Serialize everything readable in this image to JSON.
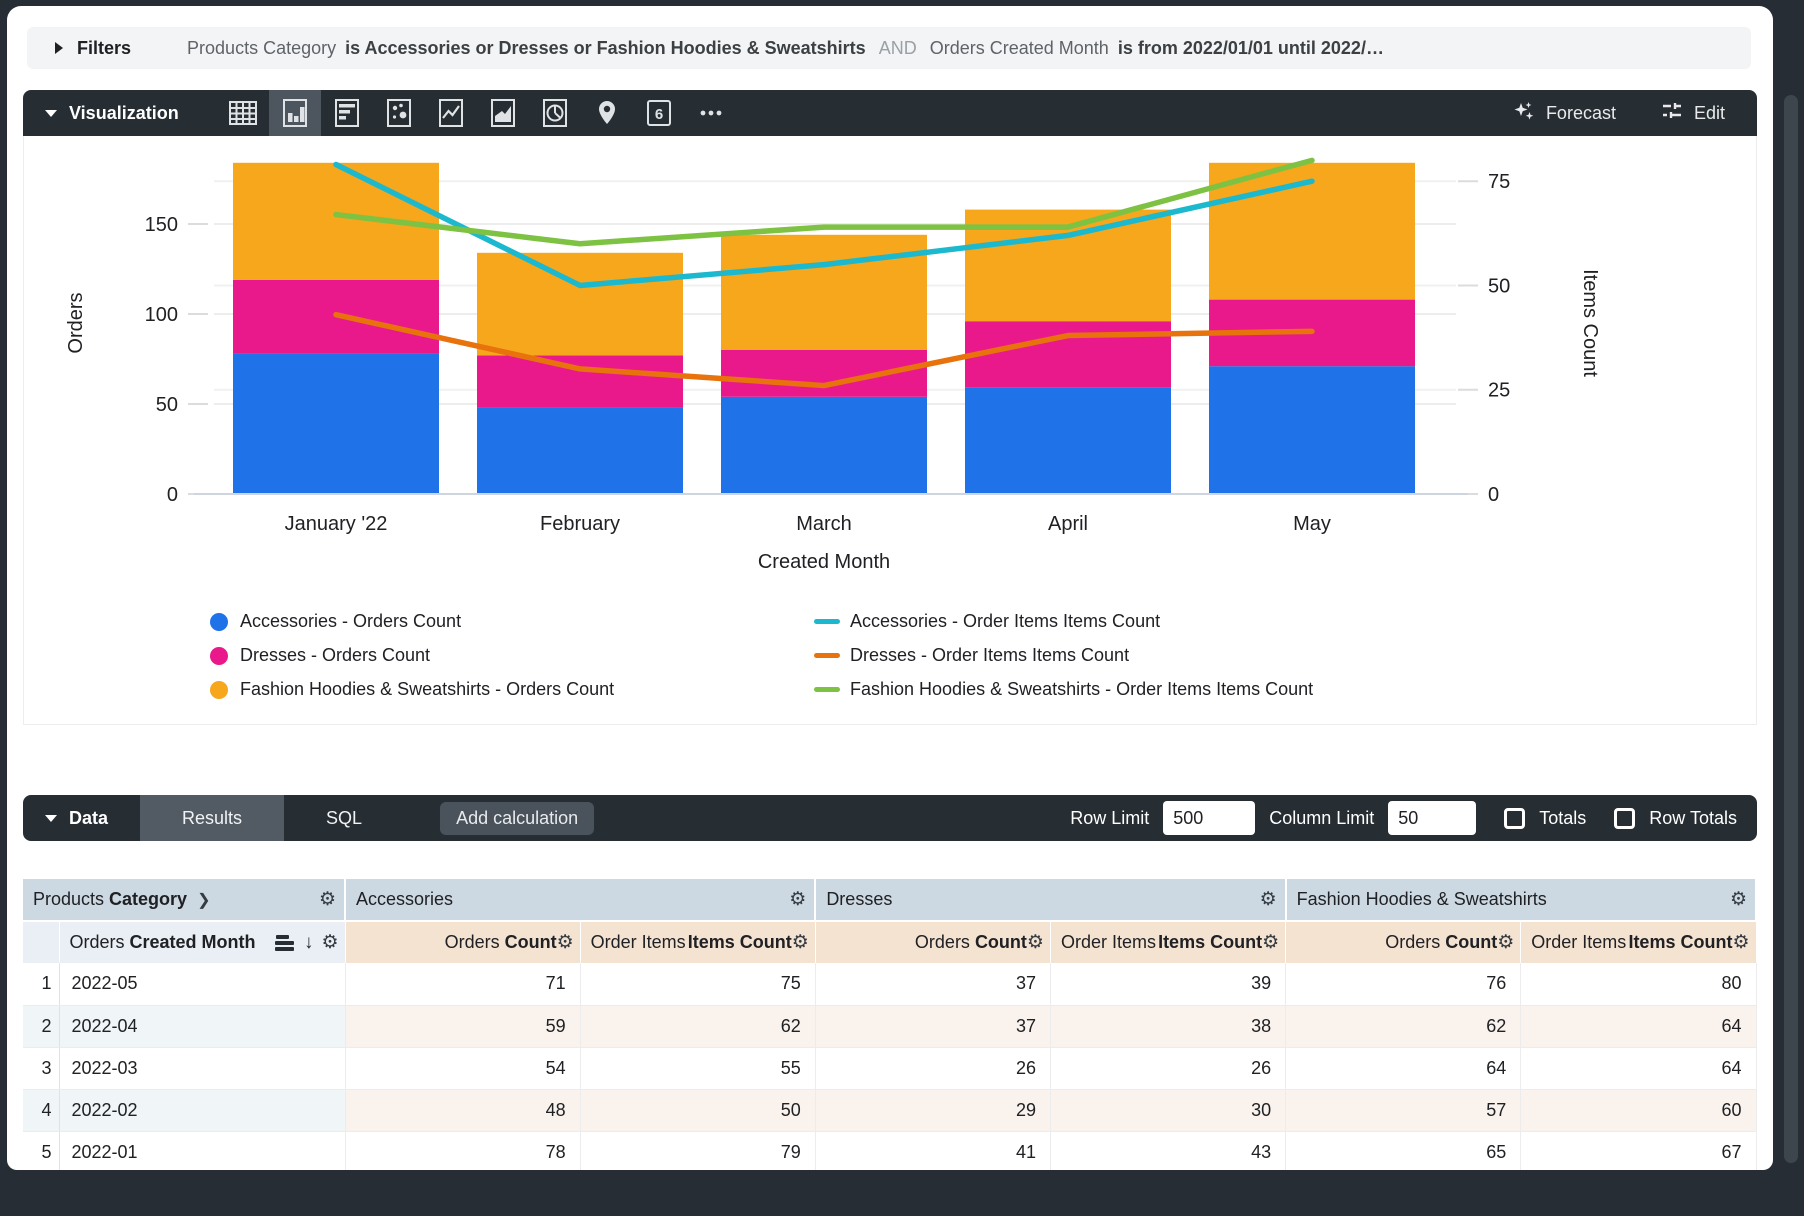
{
  "filters": {
    "label": "Filters",
    "clause1_field": "Products Category",
    "clause1_rest": "is Accessories or Dresses or Fashion Hoodies & Sweatshirts",
    "conjunction": "AND",
    "clause2_field": "Orders Created Month",
    "clause2_rest": "is from 2022/01/01 until 2022/…"
  },
  "visualization": {
    "label": "Visualization",
    "forecast_label": "Forecast",
    "edit_label": "Edit",
    "icons": [
      {
        "name": "table-chart-icon",
        "selected": false
      },
      {
        "name": "column-chart-icon",
        "selected": true
      },
      {
        "name": "bar-chart-icon",
        "selected": false
      },
      {
        "name": "scatter-chart-icon",
        "selected": false
      },
      {
        "name": "line-chart-icon",
        "selected": false
      },
      {
        "name": "area-chart-icon",
        "selected": false
      },
      {
        "name": "pie-chart-icon",
        "selected": false
      },
      {
        "name": "map-chart-icon",
        "selected": false
      },
      {
        "name": "single-value-icon",
        "selected": false,
        "glyph": "6"
      },
      {
        "name": "more-vis-types-icon",
        "selected": false
      }
    ]
  },
  "chart_data": {
    "type": "combo (stacked bar + line, dual axis)",
    "categories": [
      "January '22",
      "February",
      "March",
      "April",
      "May"
    ],
    "bar_series": [
      {
        "name": "Accessories - Orders Count",
        "color": "#1f72e8",
        "values": [
          78,
          48,
          54,
          59,
          71
        ]
      },
      {
        "name": "Dresses - Orders Count",
        "color": "#e9198c",
        "values": [
          41,
          29,
          26,
          37,
          37
        ]
      },
      {
        "name": "Fashion Hoodies & Sweatshirts - Orders Count",
        "color": "#f6a71c",
        "values": [
          65,
          57,
          64,
          62,
          76
        ]
      }
    ],
    "line_series": [
      {
        "name": "Accessories - Order Items Items Count",
        "color": "#1cb8ce",
        "values": [
          79,
          50,
          55,
          62,
          75
        ]
      },
      {
        "name": "Dresses - Order Items Items Count",
        "color": "#e8720c",
        "values": [
          43,
          30,
          26,
          38,
          39
        ]
      },
      {
        "name": "Fashion Hoodies & Sweatshirts - Order Items Items Count",
        "color": "#7dc242",
        "values": [
          67,
          60,
          64,
          64,
          80
        ]
      }
    ],
    "xlabel": "Created Month",
    "ylabel_left": "Orders",
    "ylabel_right": "Items Count",
    "yticks_left": [
      0,
      50,
      100,
      150
    ],
    "yticks_right": [
      0,
      25,
      50,
      75
    ],
    "ylim_left": [
      0,
      190
    ],
    "ylim_right": [
      0,
      82
    ],
    "grid": true,
    "legend_position": "bottom"
  },
  "data_panel": {
    "label": "Data",
    "tabs": [
      "Results",
      "SQL"
    ],
    "active_tab": "Results",
    "add_calculation_label": "Add calculation",
    "row_limit_label": "Row Limit",
    "row_limit_value": "500",
    "column_limit_label": "Column Limit",
    "column_limit_value": "50",
    "totals_label": "Totals",
    "totals_checked": false,
    "row_totals_label": "Row Totals",
    "row_totals_checked": false
  },
  "table": {
    "dimension_group": {
      "plain": "Products",
      "bold": "Category"
    },
    "dimension_column": {
      "plain": "Orders",
      "bold": "Created Month"
    },
    "groups": [
      {
        "label": "Accessories",
        "columns": [
          {
            "plain": "Orders",
            "bold": "Count"
          },
          {
            "plain": "Order Items",
            "bold": "Items Count"
          }
        ]
      },
      {
        "label": "Dresses",
        "columns": [
          {
            "plain": "Orders",
            "bold": "Count"
          },
          {
            "plain": "Order Items",
            "bold": "Items Count"
          }
        ]
      },
      {
        "label": "Fashion Hoodies & Sweatshirts",
        "columns": [
          {
            "plain": "Orders",
            "bold": "Count"
          },
          {
            "plain": "Order Items",
            "bold": "Items Count"
          }
        ]
      }
    ],
    "rows": [
      {
        "index": "1",
        "month": "2022-05",
        "values": [
          71,
          75,
          37,
          39,
          76,
          80
        ]
      },
      {
        "index": "2",
        "month": "2022-04",
        "values": [
          59,
          62,
          37,
          38,
          62,
          64
        ]
      },
      {
        "index": "3",
        "month": "2022-03",
        "values": [
          54,
          55,
          26,
          26,
          64,
          64
        ]
      },
      {
        "index": "4",
        "month": "2022-02",
        "values": [
          48,
          50,
          29,
          30,
          57,
          60
        ]
      },
      {
        "index": "5",
        "month": "2022-01",
        "values": [
          78,
          79,
          41,
          43,
          65,
          67
        ]
      }
    ]
  }
}
